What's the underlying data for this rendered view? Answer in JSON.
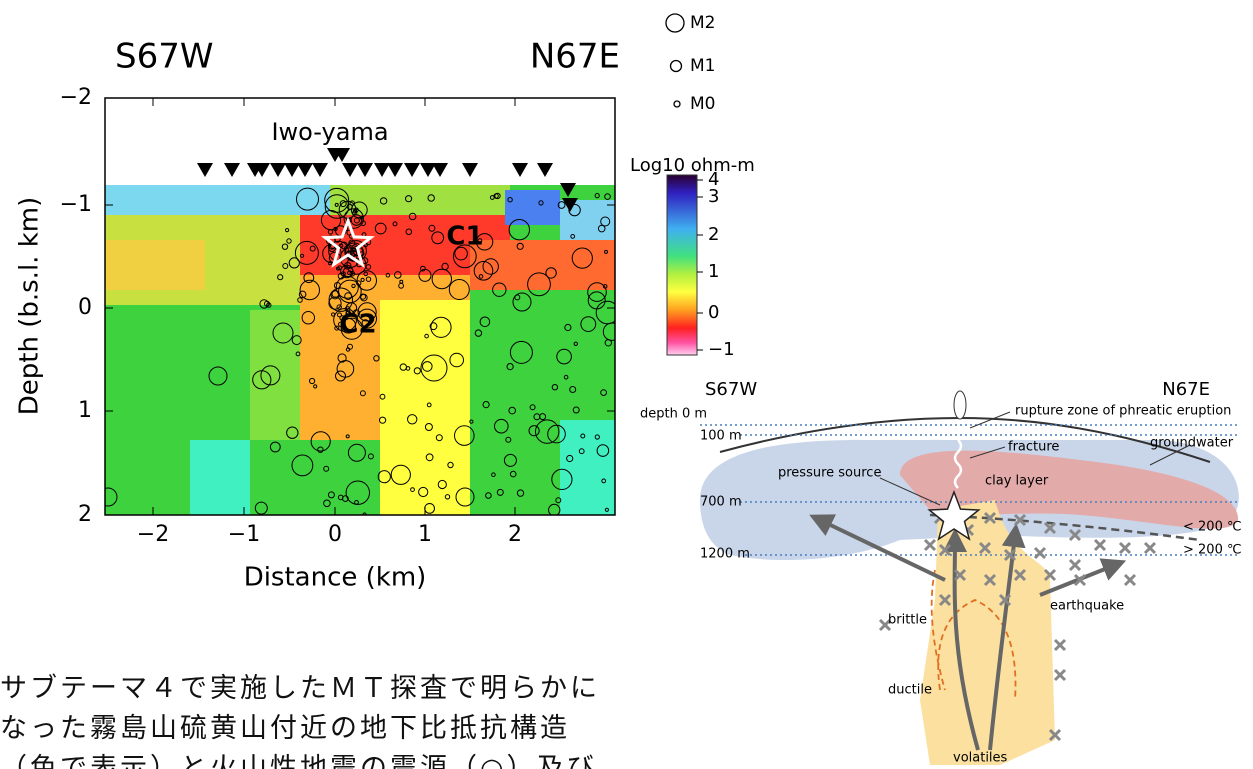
{
  "left_figure": {
    "direction_left": "S67W",
    "direction_right": "N67E",
    "y_axis_label": "Depth (b.s.l. km)",
    "x_axis_label": "Distance (km)",
    "x_ticks": [
      "−2",
      "−1",
      "0",
      "1",
      "2"
    ],
    "y_ticks": [
      "−2",
      "−1",
      "0",
      "1",
      "2"
    ],
    "annotations": {
      "volcano": "Iwo-yama",
      "c1": "C1",
      "c2": "C2"
    },
    "legend": [
      "M2",
      "M1",
      "M0"
    ],
    "colorbar": {
      "title": "Log10 ohm-m",
      "ticks": [
        "4",
        "3",
        "2",
        "1",
        "0",
        "−1"
      ]
    }
  },
  "right_figure": {
    "direction_left": "S67W",
    "direction_right": "N67E",
    "depth_labels": [
      "depth  0 m",
      "100 m",
      "700 m",
      "1200 m"
    ],
    "labels": {
      "rupture": "rupture zone of phreatic eruption",
      "fracture": "fracture",
      "groundwater": "groundwater",
      "pressure_source": "pressure source",
      "clay_layer": "clay layer",
      "below_200": "< 200 ℃",
      "above_200": "> 200 ℃",
      "brittle": "brittle",
      "earthquake": "earthquake",
      "ductile": "ductile",
      "volatiles": "volatiles"
    }
  },
  "caption": [
    "サブテーマ４で実施したＭＴ探査で明らかに",
    "なった霧島山硫黄山付近の地下比抵抗構造",
    "（色で表示）と火山性地震の震源（○）及び"
  ]
}
